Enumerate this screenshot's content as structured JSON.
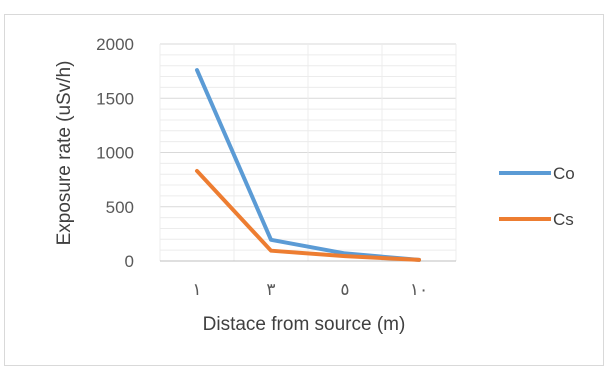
{
  "chart_data": {
    "type": "line",
    "title": "",
    "xlabel": "Distace from source (m)",
    "ylabel": "Exposure rate (uSv/h)",
    "categories": [
      "١",
      "٣",
      "٥",
      "١٠"
    ],
    "ylim": [
      0,
      2000
    ],
    "y_ticks": [
      "0",
      "500",
      "1000",
      "1500",
      "2000"
    ],
    "grid": true,
    "legend_position": "right",
    "series": [
      {
        "name": "Co",
        "color": "#5b9bd5",
        "values": [
          1760,
          195,
          70,
          10
        ]
      },
      {
        "name": "Cs",
        "color": "#ed7d31",
        "values": [
          830,
          95,
          45,
          10
        ]
      }
    ]
  }
}
